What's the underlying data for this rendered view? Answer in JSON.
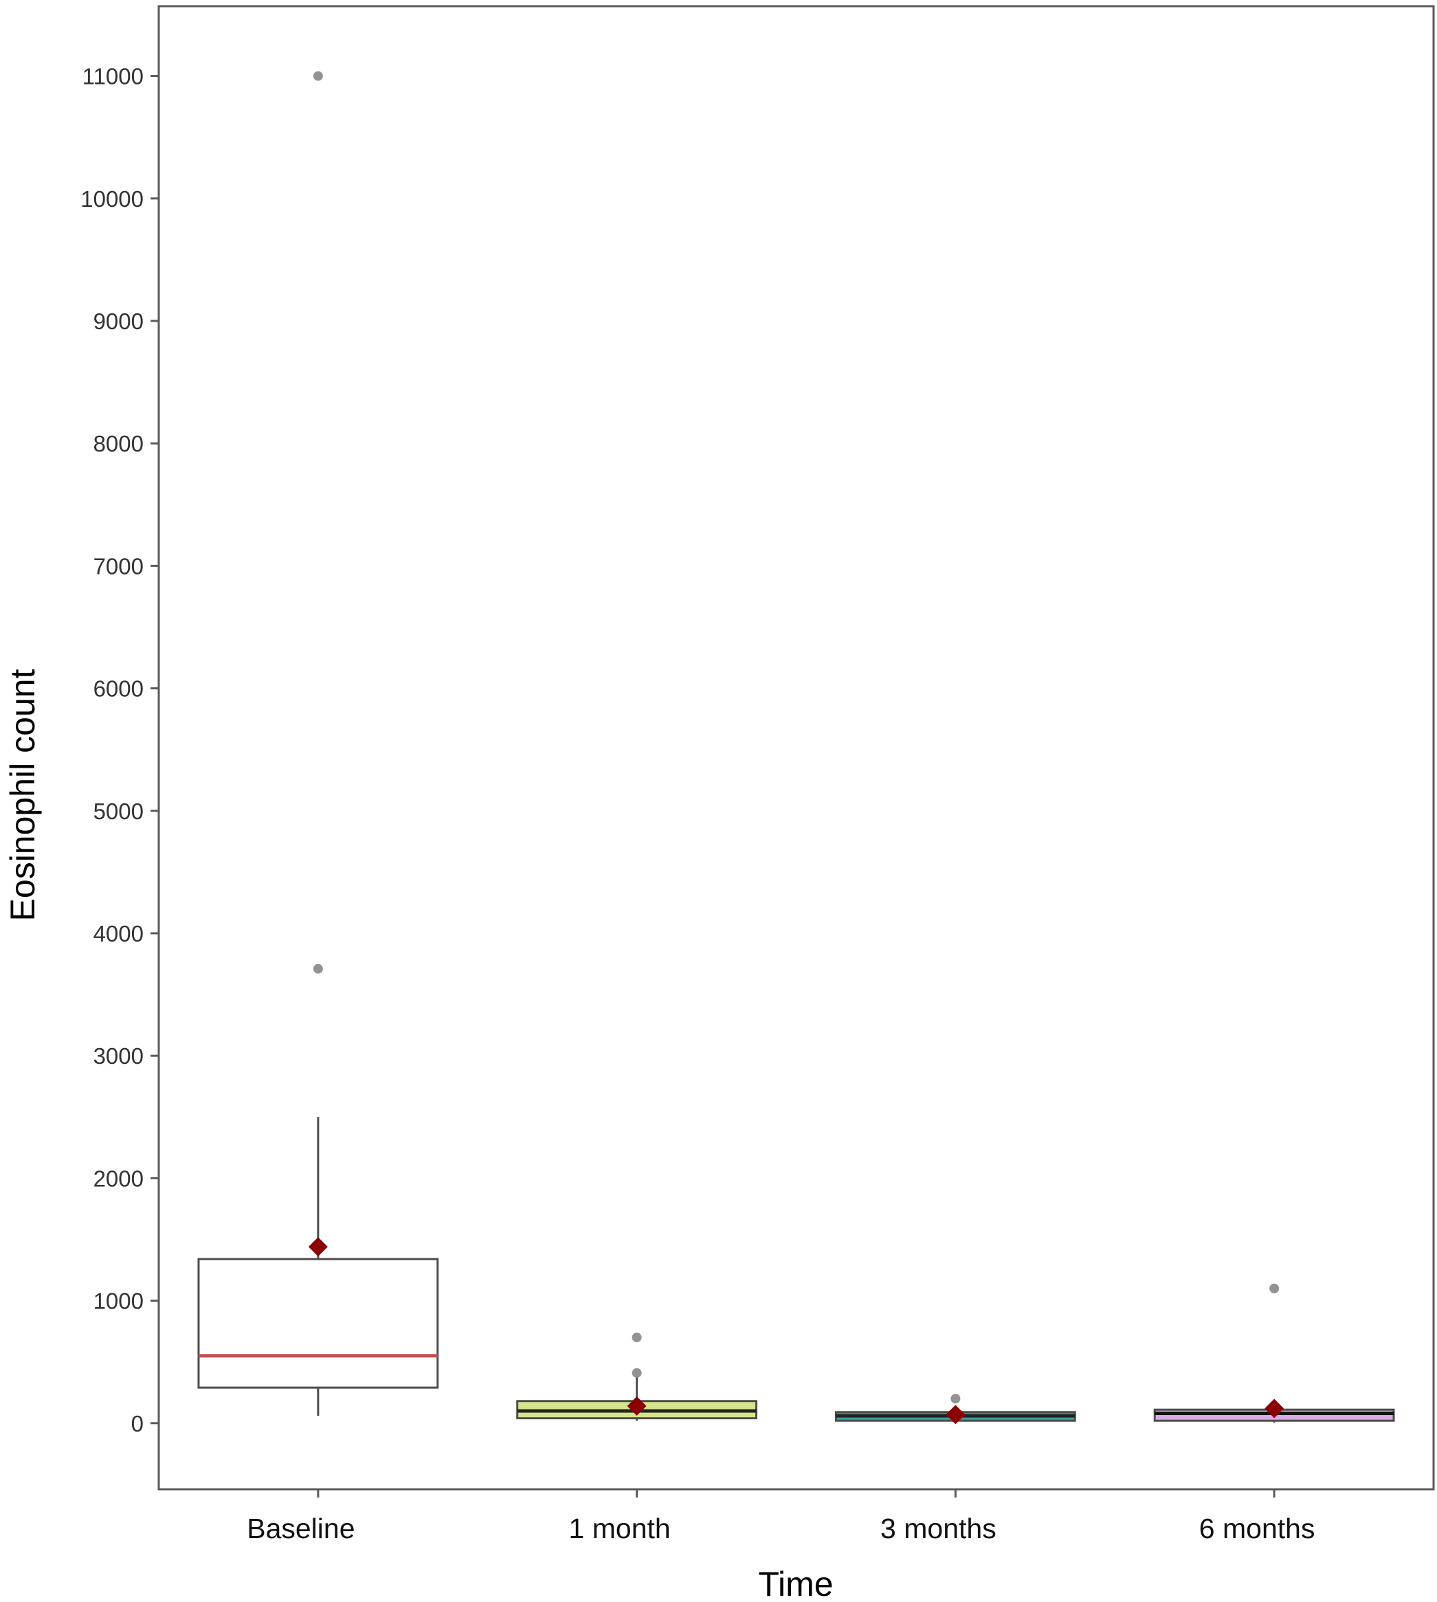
{
  "chart_data": {
    "type": "box",
    "xlabel": "Time",
    "ylabel": "Eosinophil count",
    "ylim": [
      -540,
      11570
    ],
    "y_ticks": [
      0,
      1000,
      2000,
      3000,
      4000,
      5000,
      6000,
      7000,
      8000,
      9000,
      10000,
      11000
    ],
    "grid": false,
    "legend": "none",
    "categories": [
      "Baseline",
      "1 month",
      "3 months",
      "6 months"
    ],
    "boxes": [
      {
        "category": "Baseline",
        "q1": 290,
        "median": 550,
        "q3": 1340,
        "whisker_low": 60,
        "whisker_high": 2500,
        "mean": 1440,
        "outliers": [
          3710,
          11000
        ],
        "fill": "#ffffff",
        "median_color": "#c0504d",
        "border": "#4d4d4d"
      },
      {
        "category": "1 month",
        "q1": 40,
        "median": 100,
        "q3": 180,
        "whisker_low": 20,
        "whisker_high": 380,
        "mean": 140,
        "outliers": [
          410,
          700
        ],
        "fill": "#d6e58c",
        "median_color": "#222222",
        "border": "#4d4d4d"
      },
      {
        "category": "3 months",
        "q1": 20,
        "median": 60,
        "q3": 90,
        "whisker_low": 10,
        "whisker_high": 140,
        "mean": 70,
        "outliers": [
          200
        ],
        "fill": "#3aa39d",
        "median_color": "#222222",
        "border": "#4d4d4d"
      },
      {
        "category": "6 months",
        "q1": 20,
        "median": 80,
        "q3": 110,
        "whisker_low": 5,
        "whisker_high": 120,
        "mean": 120,
        "outliers": [
          1100
        ],
        "fill": "#d9a9e6",
        "median_color": "#111111",
        "border": "#4d4d4d"
      }
    ],
    "mean_marker_color": "#8b0000",
    "outlier_color": "#808080"
  }
}
